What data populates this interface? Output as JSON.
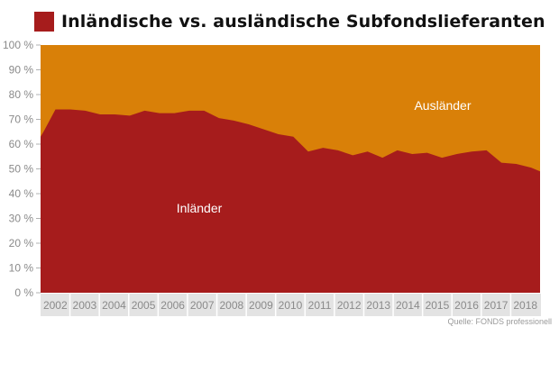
{
  "title": "Inländische vs. ausländische Subfondslieferanten",
  "source": "Quelle: FONDS professionell",
  "colors": {
    "inlaender": "#a61c1c",
    "auslaender": "#d98008",
    "title_square": "#a61c1c",
    "tick_text": "#8a8a8a",
    "xaxis_band": "#e3e3e3"
  },
  "chart_data": {
    "type": "area",
    "stacked": true,
    "ylim": [
      0,
      100
    ],
    "yticks": [
      0,
      10,
      20,
      30,
      40,
      50,
      60,
      70,
      80,
      90,
      100
    ],
    "ytick_labels": [
      "0 %",
      "10 %",
      "20 %",
      "30 %",
      "40 %",
      "50 %",
      "60 %",
      "70 %",
      "80 %",
      "90 %",
      "100 %"
    ],
    "xlim": [
      2001.5,
      2018.3
    ],
    "xtick_labels": [
      "2002",
      "2003",
      "2004",
      "2005",
      "2006",
      "2007",
      "2008",
      "2009",
      "2010",
      "2011",
      "2012",
      "2013",
      "2014",
      "2015",
      "2016",
      "2017",
      "2018"
    ],
    "grid": false,
    "series": [
      {
        "name": "Inländer",
        "x": [
          2001.5,
          2001.6,
          2002,
          2002.5,
          2003,
          2003.5,
          2004,
          2004.5,
          2005,
          2005.5,
          2006,
          2006.5,
          2007,
          2007.5,
          2008,
          2008.5,
          2009,
          2009.5,
          2010,
          2010.5,
          2011,
          2011.5,
          2012,
          2012.5,
          2013,
          2013.5,
          2014,
          2014.5,
          2015,
          2015.5,
          2016,
          2016.5,
          2017,
          2017.5,
          2018,
          2018.3
        ],
        "values": [
          63,
          65,
          74,
          74,
          73.5,
          72,
          72,
          71.5,
          73.5,
          72.5,
          72.5,
          73.5,
          73.5,
          70.5,
          69.5,
          68,
          66,
          64,
          63,
          57,
          58.5,
          57.5,
          55.5,
          57,
          54.5,
          57.5,
          56,
          56.5,
          54.5,
          56,
          57,
          57.5,
          52.5,
          52,
          50.5,
          49
        ]
      },
      {
        "name": "Ausländer",
        "note_values_are_remainder_to_100": true
      }
    ],
    "annotations": [
      "Inländer",
      "Ausländer"
    ]
  }
}
